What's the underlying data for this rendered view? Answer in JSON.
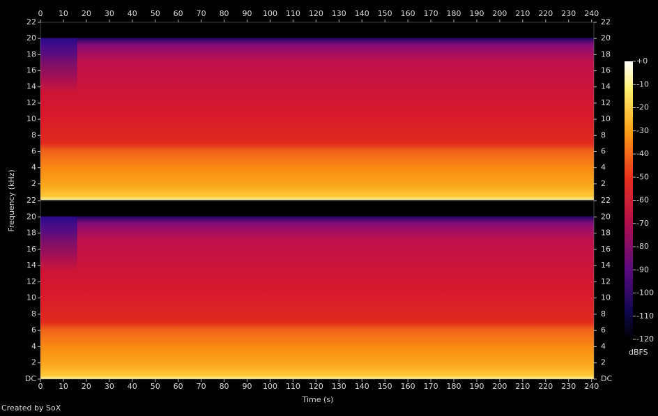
{
  "chart_data": {
    "type": "spectrogram",
    "xlabel": "Time (s)",
    "ylabel": "Frequency (kHz)",
    "xlim": [
      0,
      241
    ],
    "xticks": [
      0,
      10,
      20,
      30,
      40,
      50,
      60,
      70,
      80,
      90,
      100,
      110,
      120,
      130,
      140,
      150,
      160,
      170,
      180,
      190,
      200,
      210,
      220,
      230,
      240
    ],
    "channels": [
      {
        "ylim": [
          0,
          22
        ],
        "yticks": [
          2,
          4,
          6,
          8,
          10,
          12,
          14,
          16,
          18,
          20,
          22
        ]
      },
      {
        "ylim": [
          0,
          22
        ],
        "yticks": [
          {
            "value": 0,
            "label": "DC"
          },
          2,
          4,
          6,
          8,
          10,
          12,
          14,
          16,
          18,
          20,
          22
        ]
      }
    ],
    "colorbar": {
      "label": "dBFS",
      "lim": [
        -120,
        0
      ],
      "ticks": [
        {
          "value": 0,
          "label": "+0"
        },
        -10,
        -20,
        -30,
        -40,
        -50,
        -60,
        -70,
        -80,
        -90,
        -100,
        -110,
        -120
      ]
    }
  },
  "credit": "Created by SoX"
}
